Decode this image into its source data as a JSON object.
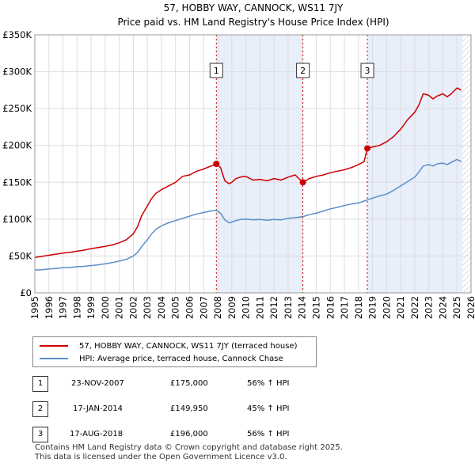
{
  "chart_data": {
    "type": "line",
    "title": "57, HOBBY WAY, CANNOCK, WS11 7JY",
    "subtitle": "Price paid vs. HM Land Registry's House Price Index (HPI)",
    "xlabel": "",
    "ylabel": "",
    "xlim": [
      1995,
      2026
    ],
    "ylim": [
      0,
      350000
    ],
    "y_ticks": [
      0,
      50000,
      100000,
      150000,
      200000,
      250000,
      300000,
      350000
    ],
    "y_tick_labels": [
      "£0",
      "£50K",
      "£100K",
      "£150K",
      "£200K",
      "£250K",
      "£300K",
      "£350K"
    ],
    "x_ticks": [
      1995,
      1996,
      1997,
      1998,
      1999,
      2000,
      2001,
      2002,
      2003,
      2004,
      2005,
      2006,
      2007,
      2008,
      2009,
      2010,
      2011,
      2012,
      2013,
      2014,
      2015,
      2016,
      2017,
      2018,
      2019,
      2020,
      2021,
      2022,
      2023,
      2024,
      2025,
      2026
    ],
    "grid": true,
    "shaded_periods": [
      [
        2007.9,
        2014.05
      ],
      [
        2018.63,
        2025.4
      ]
    ],
    "hatched_after": 2025.4,
    "colors": {
      "price": "#cc0000",
      "hpi": "#5b8ec9",
      "shade": "#e8eefa",
      "vline": "#cc0000"
    },
    "series": [
      {
        "name": "57, HOBBY WAY, CANNOCK, WS11 7JY (terraced house)",
        "key": "price",
        "x": [
          1995.0,
          1995.5,
          1996.0,
          1996.5,
          1997.0,
          1997.5,
          1998.0,
          1998.5,
          1999.0,
          1999.5,
          2000.0,
          2000.5,
          2001.0,
          2001.5,
          2002.0,
          2002.3,
          2002.6,
          2003.0,
          2003.3,
          2003.6,
          2004.0,
          2004.5,
          2005.0,
          2005.5,
          2006.0,
          2006.5,
          2007.0,
          2007.5,
          2007.9,
          2008.2,
          2008.5,
          2008.8,
          2009.0,
          2009.3,
          2009.6,
          2010.0,
          2010.5,
          2011.0,
          2011.5,
          2012.0,
          2012.5,
          2013.0,
          2013.5,
          2014.05,
          2014.5,
          2015.0,
          2015.5,
          2016.0,
          2016.5,
          2017.0,
          2017.5,
          2018.0,
          2018.4,
          2018.63,
          2019.0,
          2019.5,
          2020.0,
          2020.5,
          2021.0,
          2021.5,
          2022.0,
          2022.3,
          2022.6,
          2023.0,
          2023.3,
          2023.6,
          2024.0,
          2024.3,
          2024.6,
          2025.0,
          2025.3
        ],
        "values": [
          48000,
          49500,
          51000,
          52500,
          54000,
          55000,
          56500,
          58000,
          60000,
          61500,
          63000,
          65000,
          68000,
          72000,
          80000,
          90000,
          105000,
          118000,
          128000,
          135000,
          140000,
          145000,
          150000,
          158000,
          160000,
          165000,
          168000,
          172000,
          175000,
          170000,
          152000,
          148000,
          150000,
          155000,
          157000,
          158000,
          153000,
          154000,
          152000,
          155000,
          153000,
          157000,
          160000,
          149950,
          155000,
          158000,
          160000,
          163000,
          165000,
          167000,
          170000,
          174000,
          178000,
          196000,
          198000,
          200000,
          205000,
          212000,
          222000,
          235000,
          245000,
          255000,
          270000,
          268000,
          263000,
          267000,
          270000,
          266000,
          270000,
          278000,
          275000
        ]
      },
      {
        "name": "HPI: Average price, terraced house, Cannock Chase",
        "key": "hpi",
        "x": [
          1995.0,
          1995.5,
          1996.0,
          1996.5,
          1997.0,
          1997.5,
          1998.0,
          1998.5,
          1999.0,
          1999.5,
          2000.0,
          2000.5,
          2001.0,
          2001.5,
          2002.0,
          2002.3,
          2002.6,
          2003.0,
          2003.3,
          2003.6,
          2004.0,
          2004.5,
          2005.0,
          2005.5,
          2006.0,
          2006.5,
          2007.0,
          2007.5,
          2007.9,
          2008.2,
          2008.5,
          2008.8,
          2009.0,
          2009.3,
          2009.6,
          2010.0,
          2010.5,
          2011.0,
          2011.5,
          2012.0,
          2012.5,
          2013.0,
          2013.5,
          2014.05,
          2014.5,
          2015.0,
          2015.5,
          2016.0,
          2016.5,
          2017.0,
          2017.5,
          2018.0,
          2018.4,
          2018.63,
          2019.0,
          2019.5,
          2020.0,
          2020.5,
          2021.0,
          2021.5,
          2022.0,
          2022.3,
          2022.6,
          2023.0,
          2023.3,
          2023.6,
          2024.0,
          2024.3,
          2024.6,
          2025.0,
          2025.3
        ],
        "values": [
          31000,
          31500,
          32500,
          33000,
          34000,
          34500,
          35500,
          36000,
          37000,
          38000,
          39500,
          41000,
          43000,
          45500,
          50000,
          55000,
          63000,
          72000,
          80000,
          86000,
          91000,
          95000,
          98000,
          101000,
          104000,
          107000,
          109000,
          111000,
          112000,
          108000,
          99000,
          95000,
          96000,
          98000,
          99500,
          100000,
          99000,
          99500,
          98500,
          99500,
          99000,
          101000,
          102000,
          103500,
          106000,
          108000,
          111000,
          114000,
          116000,
          118500,
          120500,
          122000,
          124500,
          126000,
          128500,
          131500,
          134000,
          139000,
          145000,
          151000,
          157000,
          164000,
          172000,
          174000,
          172000,
          175000,
          176000,
          174000,
          177000,
          181000,
          178000
        ]
      }
    ],
    "annotations": [
      {
        "label": "1",
        "x": 2007.9,
        "value": 175000
      },
      {
        "label": "2",
        "x": 2014.05,
        "value": 149950
      },
      {
        "label": "3",
        "x": 2018.63,
        "value": 196000
      }
    ]
  },
  "legend": {
    "price_label": "57, HOBBY WAY, CANNOCK, WS11 7JY (terraced house)",
    "hpi_label": "HPI: Average price, terraced house, Cannock Chase"
  },
  "transactions": [
    {
      "num": "1",
      "date": "23-NOV-2007",
      "price": "£175,000",
      "hpi": "56% ↑ HPI"
    },
    {
      "num": "2",
      "date": "17-JAN-2014",
      "price": "£149,950",
      "hpi": "45% ↑ HPI"
    },
    {
      "num": "3",
      "date": "17-AUG-2018",
      "price": "£196,000",
      "hpi": "56% ↑ HPI"
    }
  ],
  "footer": {
    "line1": "Contains HM Land Registry data © Crown copyright and database right 2025.",
    "line2": "This data is licensed under the Open Government Licence v3.0."
  }
}
